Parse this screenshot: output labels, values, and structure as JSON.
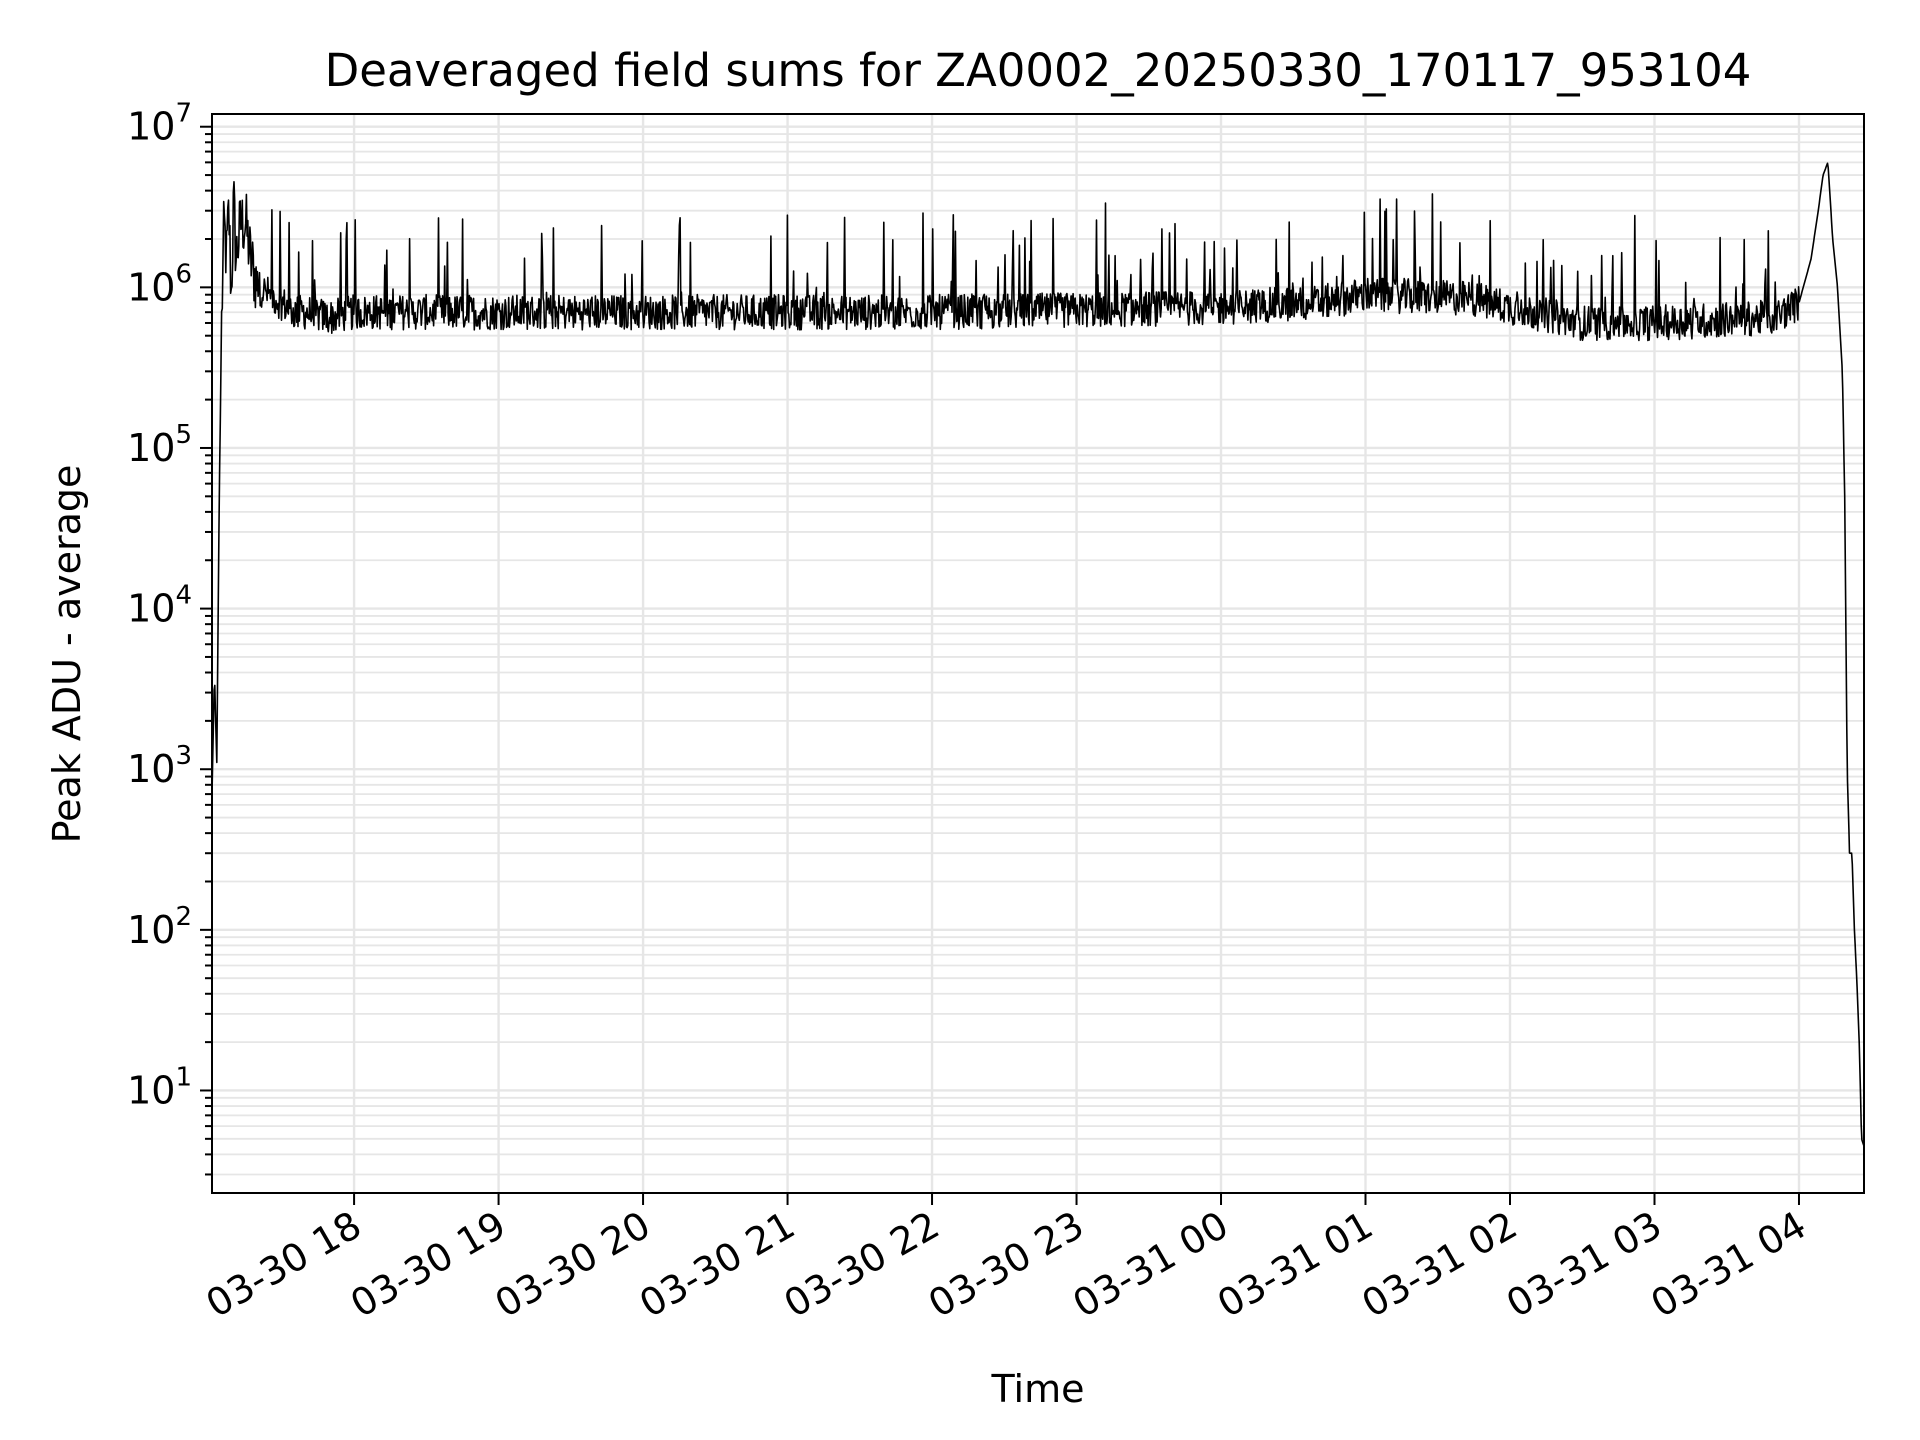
{
  "chart_data": {
    "type": "line",
    "title": "Deaveraged field sums for ZA0002_20250330_170117_953104",
    "xlabel": "Time",
    "ylabel": "Peak ADU - average",
    "y_scale": "log",
    "ylim": [
      2.3,
      12000000
    ],
    "xlim": [
      "2025-03-30 17:01",
      "2025-03-31 04:27"
    ],
    "grid": true,
    "line_color": "#000000",
    "x_ticks": [
      "03-30 18",
      "03-30 19",
      "03-30 20",
      "03-30 21",
      "03-30 22",
      "03-30 23",
      "03-31 00",
      "03-31 01",
      "03-31 02",
      "03-31 03",
      "03-31 04"
    ],
    "y_ticks": [
      {
        "base": "10",
        "exp": "1"
      },
      {
        "base": "10",
        "exp": "2"
      },
      {
        "base": "10",
        "exp": "3"
      },
      {
        "base": "10",
        "exp": "4"
      },
      {
        "base": "10",
        "exp": "5"
      },
      {
        "base": "10",
        "exp": "6"
      },
      {
        "base": "10",
        "exp": "7"
      }
    ],
    "series": [
      {
        "x": [
          "2025-03-30 17:01",
          "2025-03-30 17:02",
          "2025-03-30 17:03",
          "2025-03-30 17:04",
          "2025-03-30 17:05",
          "2025-03-30 17:06",
          "2025-03-30 17:07",
          "2025-03-30 17:08",
          "2025-03-30 17:09",
          "2025-03-30 17:10",
          "2025-03-30 17:11",
          "2025-03-30 17:12",
          "2025-03-30 17:13",
          "2025-03-30 17:15",
          "2025-03-30 17:17",
          "2025-03-30 17:20",
          "2025-03-30 17:25",
          "2025-03-30 17:30",
          "2025-03-30 17:35",
          "2025-03-30 17:40",
          "2025-03-30 17:50",
          "2025-03-30 18:00",
          "2025-03-30 19:00",
          "2025-03-30 20:00",
          "2025-03-30 21:00",
          "2025-03-30 22:00",
          "2025-03-30 23:00",
          "2025-03-31 00:00",
          "2025-03-31 00:40",
          "2025-03-31 01:00",
          "2025-03-31 01:45",
          "2025-03-31 02:00",
          "2025-03-31 02:30",
          "2025-03-31 03:00",
          "2025-03-31 03:50",
          "2025-03-31 04:00",
          "2025-03-31 04:05",
          "2025-03-31 04:08",
          "2025-03-31 04:10",
          "2025-03-31 04:12",
          "2025-03-31 04:14",
          "2025-03-31 04:16",
          "2025-03-31 04:18",
          "2025-03-31 04:19",
          "2025-03-31 04:20",
          "2025-03-31 04:21",
          "2025-03-31 04:22",
          "2025-03-31 04:23",
          "2025-03-31 04:24",
          "2025-03-31 04:25",
          "2025-03-31 04:26",
          "2025-03-31 04:27"
        ],
        "values": [
          700,
          4000,
          1100,
          50000,
          600000,
          2500000,
          1500000,
          3000000,
          900000,
          3500000,
          1500000,
          2000000,
          2500000,
          2500000,
          1500000,
          1000000,
          900000,
          800000,
          700000,
          700000,
          650000,
          700000,
          700000,
          700000,
          700000,
          700000,
          720000,
          750000,
          800000,
          900000,
          850000,
          750000,
          600000,
          600000,
          650000,
          800000,
          1500000,
          3000000,
          5000000,
          6000000,
          2000000,
          1000000,
          300000,
          50000,
          1000,
          300,
          300,
          100,
          50,
          20,
          5,
          4.5
        ]
      }
    ]
  }
}
